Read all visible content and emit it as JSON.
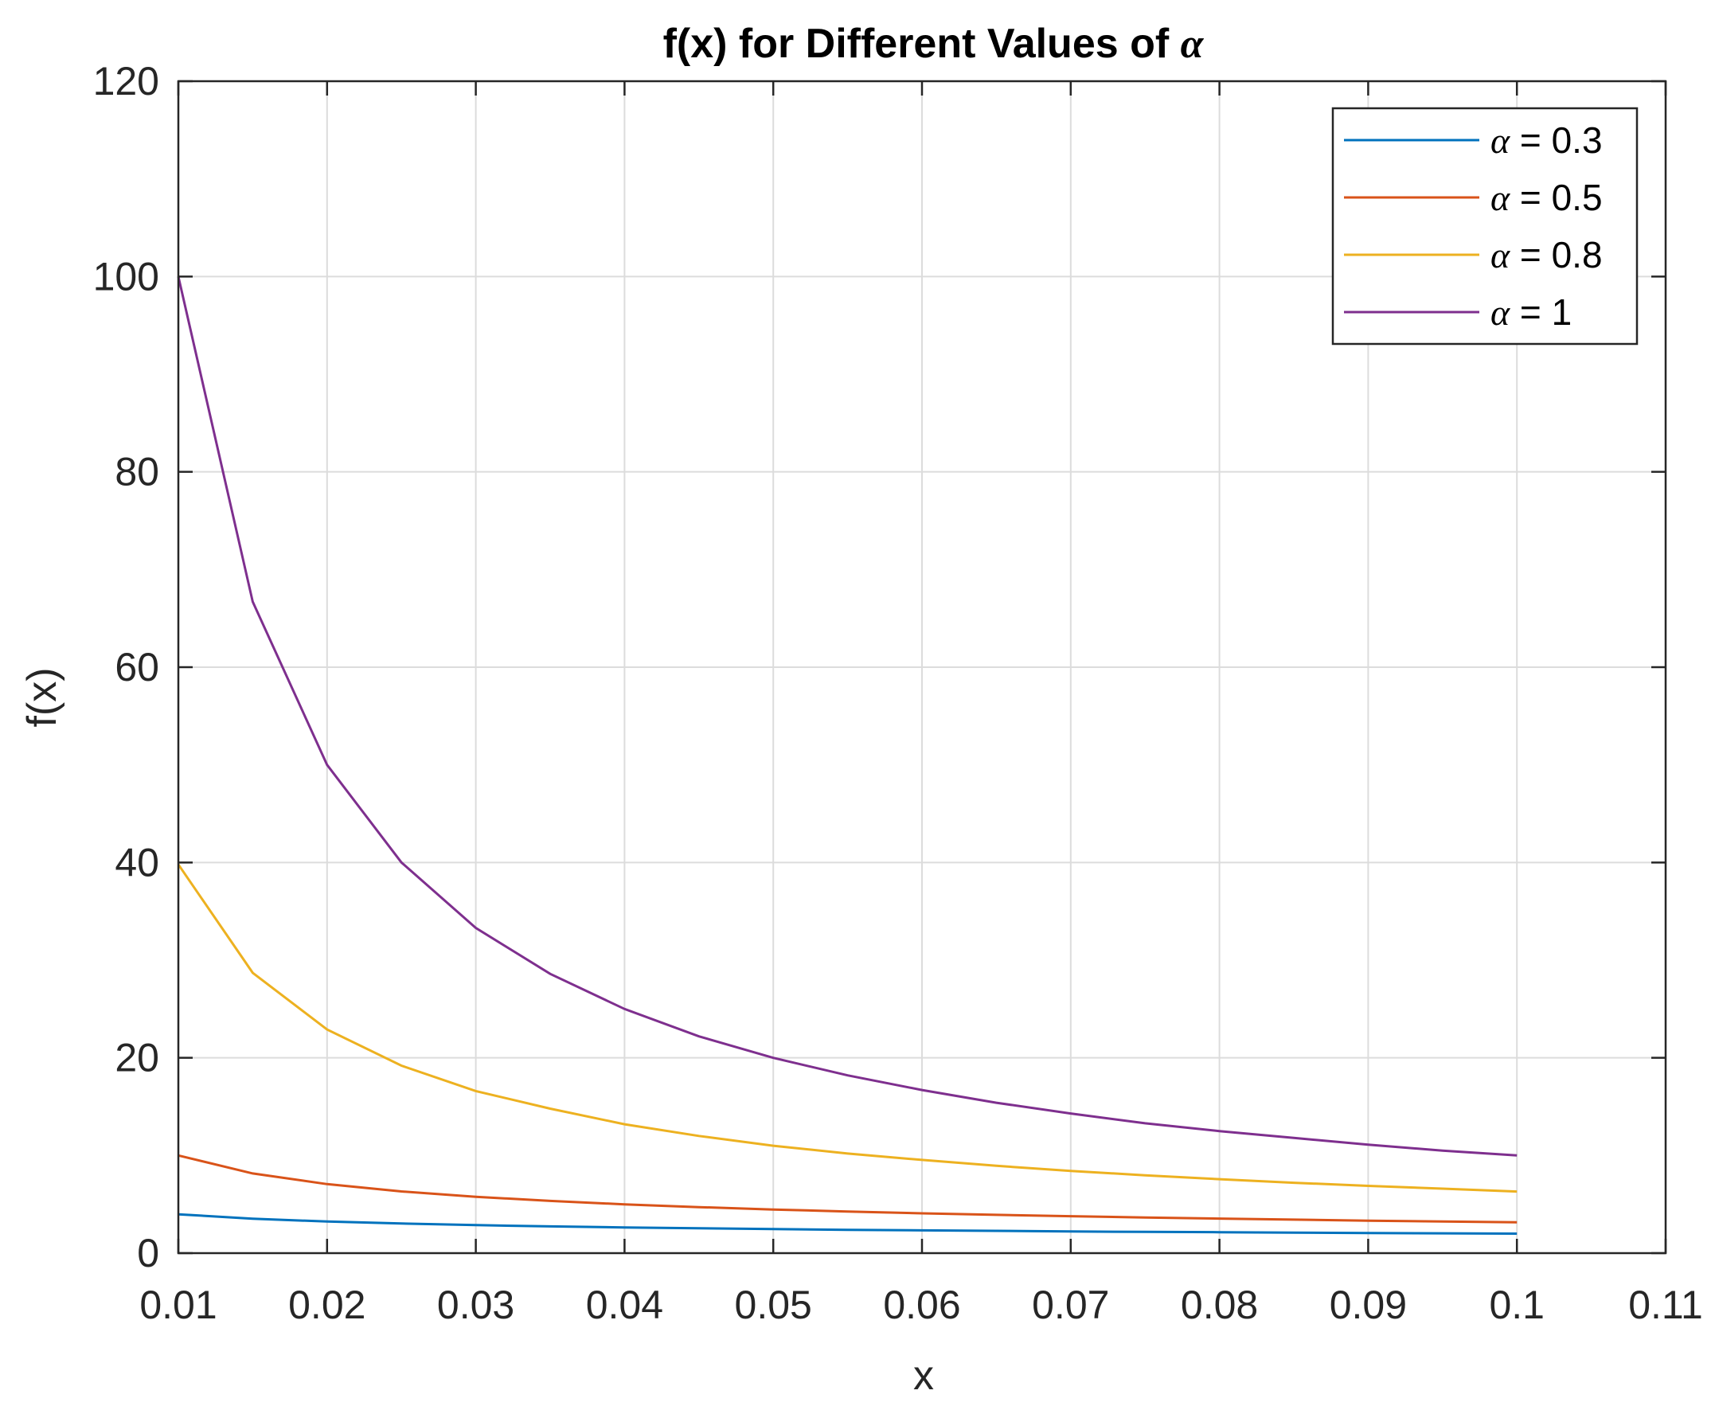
{
  "chart_data": {
    "type": "line",
    "title": "f(x) for Different Values of α",
    "title_parts": {
      "prefix": "f(x) for Different Values of",
      "symbol": "α"
    },
    "xlabel": "x",
    "ylabel": "f(x)",
    "xlim": [
      0.01,
      0.11
    ],
    "ylim": [
      0,
      120
    ],
    "x_ticks": [
      0.01,
      0.02,
      0.03,
      0.04,
      0.05,
      0.06,
      0.07,
      0.08,
      0.09,
      0.1,
      0.11
    ],
    "x_tick_labels": [
      "0.01",
      "0.02",
      "0.03",
      "0.04",
      "0.05",
      "0.06",
      "0.07",
      "0.08",
      "0.09",
      "0.1",
      "0.11"
    ],
    "y_ticks": [
      0,
      20,
      40,
      60,
      80,
      100,
      120
    ],
    "y_tick_labels": [
      "0",
      "20",
      "40",
      "60",
      "80",
      "100",
      "120"
    ],
    "grid": true,
    "legend_position": "top-right",
    "x": [
      0.01,
      0.015,
      0.02,
      0.025,
      0.03,
      0.035,
      0.04,
      0.045,
      0.05,
      0.055,
      0.06,
      0.065,
      0.07,
      0.075,
      0.08,
      0.085,
      0.09,
      0.095,
      0.1
    ],
    "series": [
      {
        "name": "α = 0.3",
        "symbol": "α",
        "value_text": "= 0.3",
        "color": "#0072BD",
        "values": [
          3.98,
          3.53,
          3.24,
          3.03,
          2.87,
          2.74,
          2.63,
          2.54,
          2.46,
          2.39,
          2.33,
          2.28,
          2.22,
          2.18,
          2.14,
          2.1,
          2.06,
          2.03,
          2.0
        ]
      },
      {
        "name": "α = 0.5",
        "symbol": "α",
        "value_text": "= 0.5",
        "color": "#D95319",
        "values": [
          10.0,
          8.16,
          7.07,
          6.32,
          5.77,
          5.35,
          5.0,
          4.71,
          4.47,
          4.26,
          4.08,
          3.92,
          3.78,
          3.65,
          3.54,
          3.43,
          3.33,
          3.24,
          3.16
        ]
      },
      {
        "name": "α = 0.8",
        "symbol": "α",
        "value_text": "= 0.8",
        "color": "#EDB120",
        "values": [
          39.8,
          28.7,
          22.9,
          19.2,
          16.6,
          14.8,
          13.2,
          12.0,
          11.0,
          10.2,
          9.55,
          8.94,
          8.42,
          7.97,
          7.57,
          7.21,
          6.89,
          6.6,
          6.31
        ]
      },
      {
        "name": "α = 1",
        "symbol": "α",
        "value_text": "= 1",
        "color": "#7E2F8E",
        "values": [
          100.0,
          66.7,
          50.0,
          40.0,
          33.3,
          28.6,
          25.0,
          22.2,
          20.0,
          18.2,
          16.7,
          15.4,
          14.3,
          13.3,
          12.5,
          11.8,
          11.1,
          10.5,
          10.0
        ]
      }
    ]
  }
}
